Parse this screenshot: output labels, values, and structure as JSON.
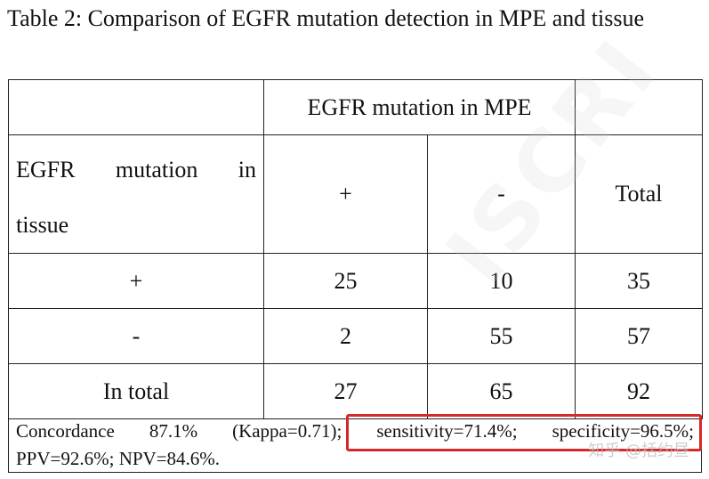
{
  "title": "Table 2: Comparison of EGFR mutation detection in MPE and tissue",
  "table": {
    "mpe_header": "EGFR mutation in MPE",
    "tissue_header_words": [
      "EGFR",
      "mutation",
      "in"
    ],
    "tissue_header_line2": "tissue",
    "col_plus": "+",
    "col_minus": "-",
    "col_total": "Total",
    "rows": [
      {
        "label": "+",
        "plus": "25",
        "minus": "10",
        "total": "35"
      },
      {
        "label": "-",
        "plus": "2",
        "minus": "55",
        "total": "57"
      },
      {
        "label": "In total",
        "plus": "27",
        "minus": "65",
        "total": "92"
      }
    ]
  },
  "footer": {
    "line1_words": [
      "Concordance",
      "87.1%",
      "(Kappa=0.71);",
      "sensitivity=71.4%;",
      "specificity=96.5%;"
    ],
    "line2": "PPV=92.6%; NPV=84.6%."
  },
  "watermark": {
    "text": "知乎 @括约昼",
    "faint": "ISCRI"
  },
  "colors": {
    "highlight": "#d62828"
  }
}
